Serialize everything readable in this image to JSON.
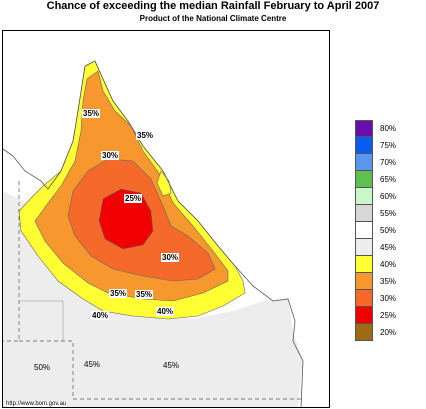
{
  "header": {
    "title": "Chance of exceeding the median Rainfall February to April 2007",
    "subtitle": "Product of the National Climate Centre"
  },
  "map": {
    "contour_labels": {
      "l35_north": "35%",
      "l35_cape": "35%",
      "l30_north": "30%",
      "l25": "25%",
      "l30_south": "30%",
      "l35_sw": "35%",
      "l35_s": "35%",
      "l40_w": "40%",
      "l40_e": "40%"
    },
    "region_labels": {
      "nt": "50%",
      "sw_inland": "45%",
      "se_inland": "45%"
    },
    "source_url": "http://www.bom.gov.au"
  },
  "legend": {
    "items": [
      {
        "label": "80%",
        "color": "#6a0dad"
      },
      {
        "label": "75%",
        "color": "#0a5cf0"
      },
      {
        "label": "70%",
        "color": "#5b96ee"
      },
      {
        "label": "65%",
        "color": "#5fbf4f"
      },
      {
        "label": "60%",
        "color": "#c8f7c8"
      },
      {
        "label": "55%",
        "color": "#d7d7d7"
      },
      {
        "label": "50%",
        "color": "#ffffff"
      },
      {
        "label": "45%",
        "color": "#ededed"
      },
      {
        "label": "40%",
        "color": "#ffff33"
      },
      {
        "label": "35%",
        "color": "#f7982f"
      },
      {
        "label": "30%",
        "color": "#f56a2a"
      },
      {
        "label": "25%",
        "color": "#f00000"
      },
      {
        "label": "20%",
        "color": "#9c6a10"
      }
    ]
  }
}
